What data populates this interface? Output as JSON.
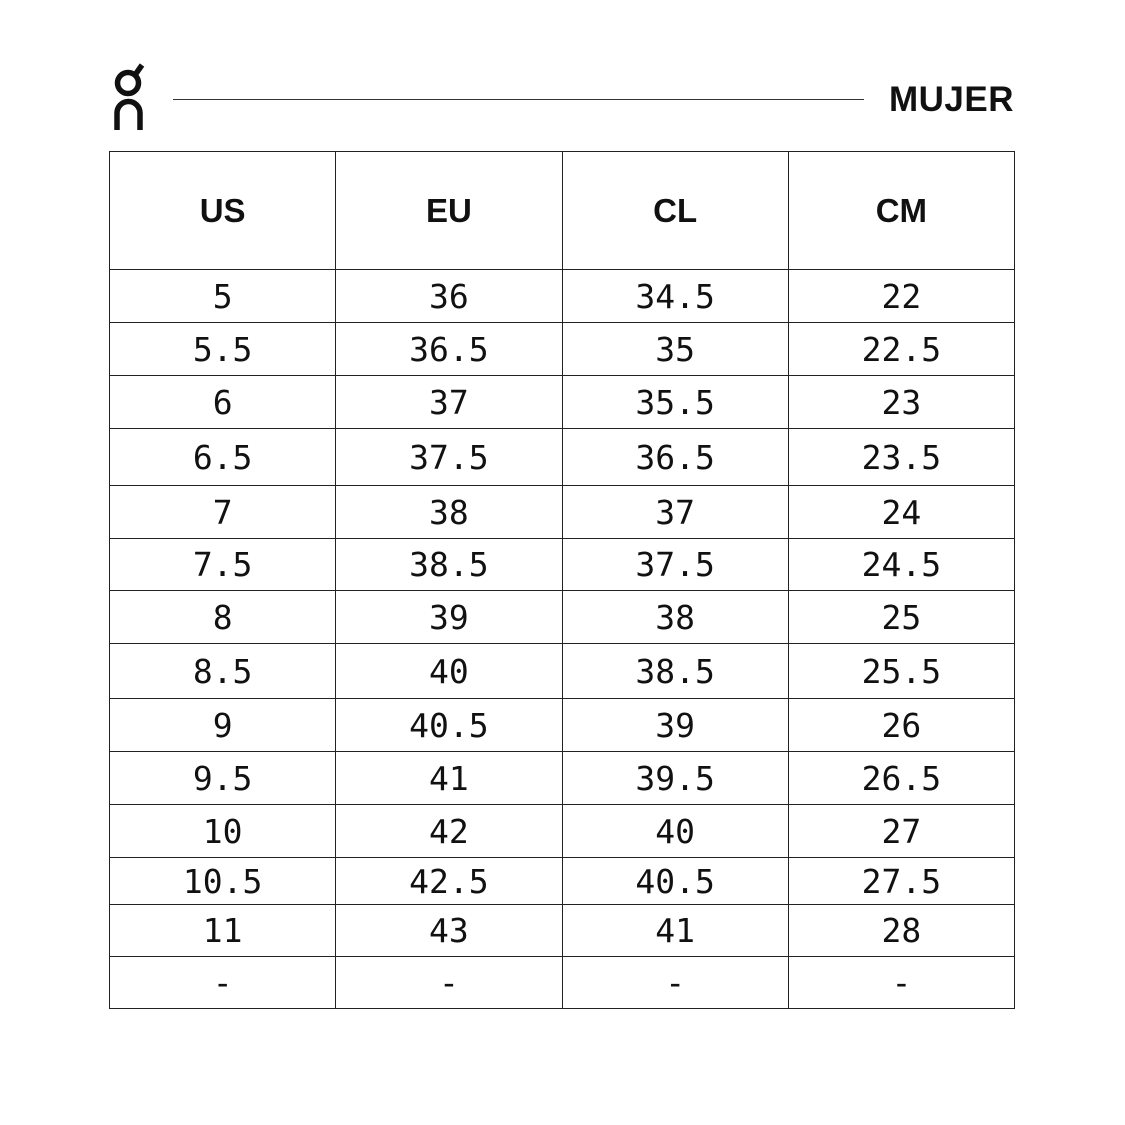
{
  "brand": {
    "logo": "On"
  },
  "header": {
    "title": "MUJER"
  },
  "table": {
    "columns": [
      "US",
      "EU",
      "CL",
      "CM"
    ],
    "rows": [
      [
        "5",
        "36",
        "34.5",
        "22"
      ],
      [
        "5.5",
        "36.5",
        "35",
        "22.5"
      ],
      [
        "6",
        "37",
        "35.5",
        "23"
      ],
      [
        "6.5",
        "37.5",
        "36.5",
        "23.5"
      ],
      [
        "7",
        "38",
        "37",
        "24"
      ],
      [
        "7.5",
        "38.5",
        "37.5",
        "24.5"
      ],
      [
        "8",
        "39",
        "38",
        "25"
      ],
      [
        "8.5",
        "40",
        "38.5",
        "25.5"
      ],
      [
        "9",
        "40.5",
        "39",
        "26"
      ],
      [
        "9.5",
        "41",
        "39.5",
        "26.5"
      ],
      [
        "10",
        "42",
        "40",
        "27"
      ],
      [
        "10.5",
        "42.5",
        "40.5",
        "27.5"
      ],
      [
        "11",
        "43",
        "41",
        "28"
      ],
      [
        "-",
        "-",
        "-",
        "-"
      ]
    ]
  }
}
